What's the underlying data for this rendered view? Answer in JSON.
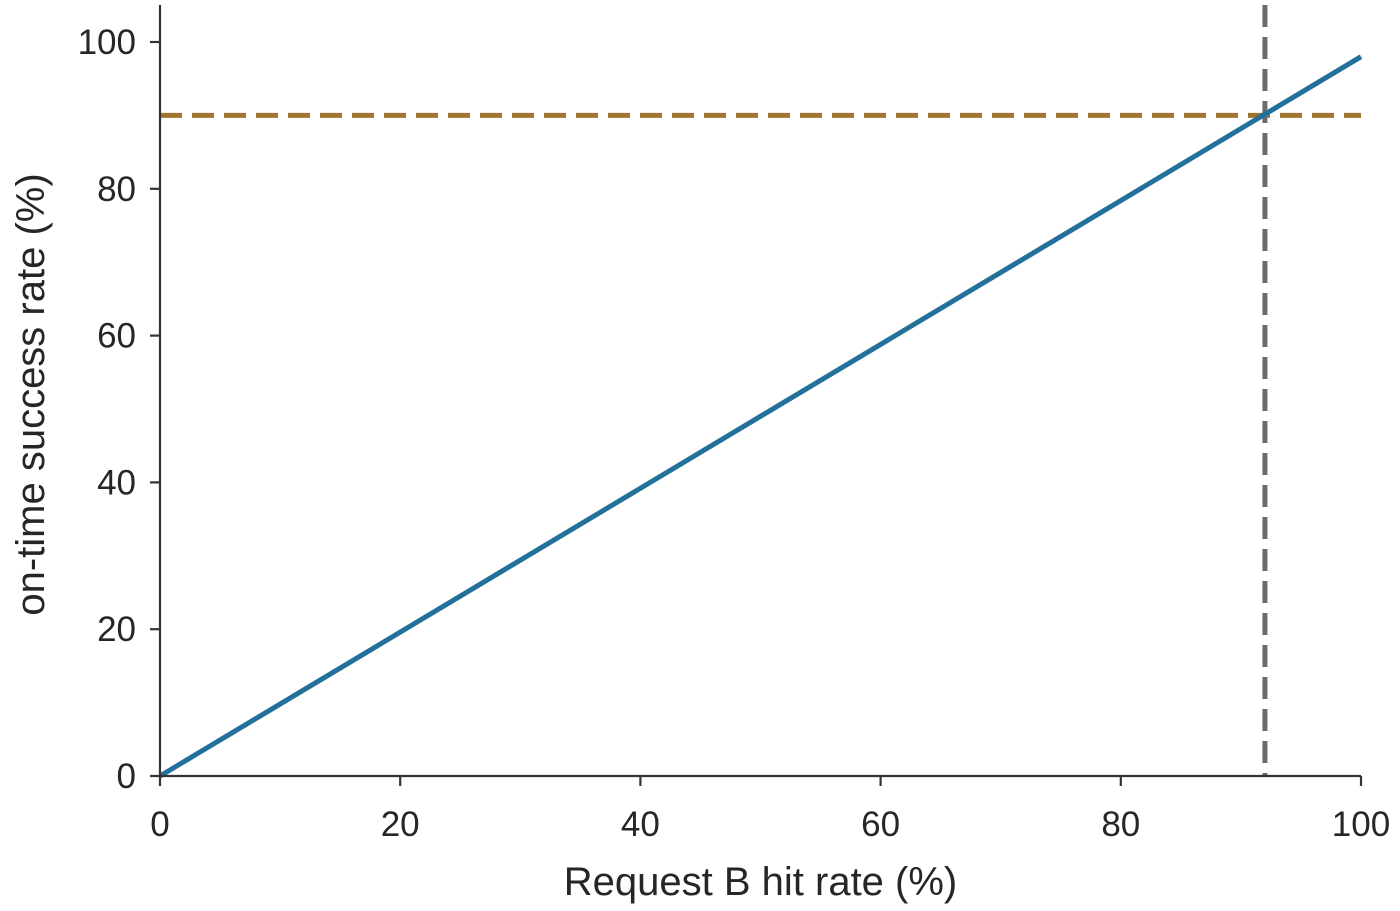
{
  "chart_data": {
    "type": "line",
    "title": "",
    "xlabel": "Request B hit rate (%)",
    "ylabel": "on-time success rate (%)",
    "xlim": [
      0,
      100
    ],
    "ylim": [
      0,
      105
    ],
    "x_ticks": [
      0,
      20,
      40,
      60,
      80,
      100
    ],
    "y_ticks": [
      0,
      20,
      40,
      60,
      80,
      100
    ],
    "x_tick_labels": [
      "0",
      "20",
      "40",
      "60",
      "80",
      "100"
    ],
    "y_tick_labels": [
      "0",
      "20",
      "40",
      "60",
      "80",
      "100"
    ],
    "grid": false,
    "legend": "none",
    "series": [
      {
        "x": [
          0,
          100
        ],
        "y": [
          0,
          98
        ],
        "color": "#23709a",
        "style": "solid"
      }
    ],
    "reference_lines": [
      {
        "orientation": "horizontal",
        "value": 90,
        "color": "#a0732e",
        "style": "dashed"
      },
      {
        "orientation": "vertical",
        "value": 92,
        "color": "#6b6b6b",
        "style": "dashed"
      }
    ]
  }
}
